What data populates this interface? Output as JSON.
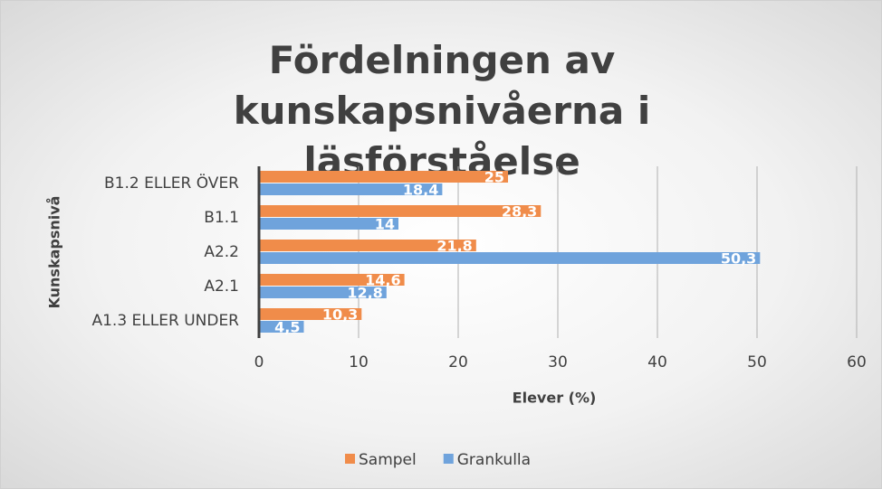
{
  "chart_data": {
    "type": "hbar",
    "title": "Fördelningen av kunskapsnivåerna i läsförståelse",
    "x_label": "Elever (%)",
    "y_label": "Kunskapsnivå",
    "categories": [
      "B1.2 ELLER ÖVER",
      "B1.1",
      "A2.2",
      "A2.1",
      "A1.3 ELLER UNDER"
    ],
    "series": [
      {
        "name": "Sampel",
        "color": "#f08c4a",
        "values": [
          25,
          28.3,
          21.8,
          14.6,
          10.3
        ],
        "value_labels": [
          "25",
          "28,3",
          "21,8",
          "14,6",
          "10,3"
        ]
      },
      {
        "name": "Grankulla",
        "color": "#6fa3dc",
        "values": [
          18.4,
          14,
          50.3,
          12.8,
          4.5
        ],
        "value_labels": [
          "18,4",
          "14",
          "50,3",
          "12,8",
          "4,5"
        ]
      }
    ],
    "xlim": [
      0,
      60
    ],
    "xticks": [
      0,
      10,
      20,
      30,
      40,
      50,
      60
    ],
    "grid": true,
    "legend": "bottom"
  }
}
